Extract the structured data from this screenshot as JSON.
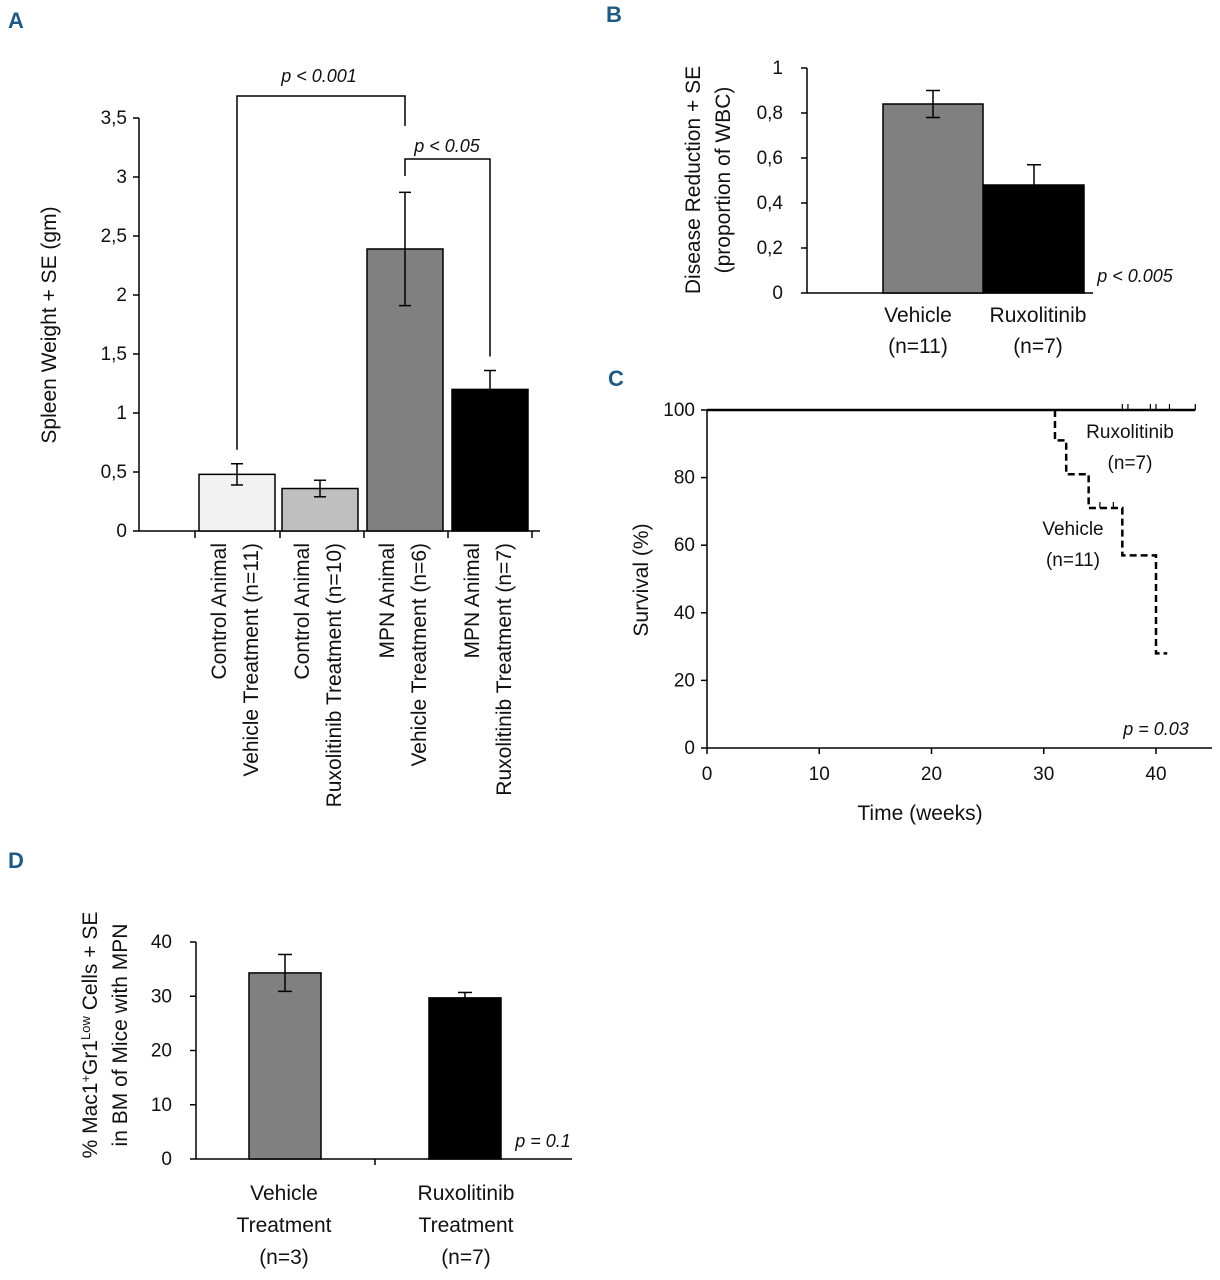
{
  "panels": {
    "A": {
      "label": "A",
      "p_top": "p < 0.001",
      "p_right": "p < 0.05"
    },
    "B": {
      "label": "B",
      "p": "p < 0.005"
    },
    "C": {
      "label": "C",
      "p": "p = 0.03"
    },
    "D": {
      "label": "D",
      "p": "p = 0.1"
    }
  },
  "colors": {
    "control_vehicle": "#f2f2f2",
    "control_ruxo": "#bfbfbf",
    "mpn_vehicle": "#808080",
    "mpn_ruxo": "#000000"
  },
  "chart_data": [
    {
      "id": "A",
      "type": "bar",
      "ylabel": "Spleen Weight + SE (gm)",
      "ylim": [
        0,
        3.5
      ],
      "yticks": [
        "0",
        "0,5",
        "1",
        "1,5",
        "2",
        "2,5",
        "3",
        "3,5"
      ],
      "categories": [
        [
          "Control Animal",
          "Vehicle Treatment (n=11)"
        ],
        [
          "Control Animal",
          "Ruxolitinib Treatment (n=10)"
        ],
        [
          "MPN Animal",
          "Vehicle Treatment (n=6)"
        ],
        [
          "MPN Animal",
          "Ruxolitinib Treatment (n=7)"
        ]
      ],
      "values": [
        0.48,
        0.36,
        2.39,
        1.2
      ],
      "errors": [
        0.09,
        0.07,
        0.48,
        0.16
      ],
      "annotations": [
        "p < 0.001",
        "p < 0.05"
      ]
    },
    {
      "id": "B",
      "type": "bar",
      "ylabel": [
        "Disease Reduction + SE",
        "(proportion of WBC)"
      ],
      "ylim": [
        0,
        1
      ],
      "yticks": [
        "0",
        "0,2",
        "0,4",
        "0,6",
        "0,8",
        "1"
      ],
      "categories": [
        [
          "Vehicle",
          "(n=11)"
        ],
        [
          "Ruxolitinib",
          "(n=7)"
        ]
      ],
      "values": [
        0.84,
        0.48
      ],
      "errors": [
        0.06,
        0.09
      ],
      "annotations": [
        "p < 0.005"
      ]
    },
    {
      "id": "C",
      "type": "line",
      "xlabel": "Time (weeks)",
      "ylabel": "Survival (%)",
      "xlim": [
        0,
        44
      ],
      "ylim": [
        0,
        100
      ],
      "xticks": [
        "0",
        "10",
        "20",
        "30",
        "40"
      ],
      "yticks": [
        "0",
        "20",
        "40",
        "60",
        "80",
        "100"
      ],
      "series": [
        {
          "name": "Ruxolitinib",
          "n_label": "(n=7)",
          "x": [
            0,
            43.5
          ],
          "y": [
            100,
            100
          ],
          "censor_x": [
            37,
            37.5,
            39.5,
            40,
            41.2,
            43.5
          ]
        },
        {
          "name": "Vehicle",
          "n_label": "(n=11)",
          "x": [
            31,
            31,
            32,
            32,
            34,
            34,
            37,
            37,
            40,
            40,
            41
          ],
          "y": [
            100,
            91,
            91,
            81,
            81,
            71,
            71,
            57,
            57,
            28,
            28
          ],
          "censor_x": [
            35,
            36.2
          ]
        }
      ],
      "annotations": [
        "p = 0.03"
      ]
    },
    {
      "id": "D",
      "type": "bar",
      "ylabel": [
        "% Mac1",
        "+",
        "Gr1",
        "Low",
        " Cells + SE",
        "in BM of Mice with MPN"
      ],
      "ylim": [
        0,
        40
      ],
      "yticks": [
        "0",
        "10",
        "20",
        "30",
        "40"
      ],
      "categories": [
        [
          "Vehicle",
          "Treatment",
          "(n=3)"
        ],
        [
          "Ruxolitinib",
          "Treatment",
          "(n=7)"
        ]
      ],
      "values": [
        34.3,
        29.7
      ],
      "errors": [
        3.4,
        1.0
      ],
      "annotations": [
        "p = 0.1"
      ]
    }
  ]
}
